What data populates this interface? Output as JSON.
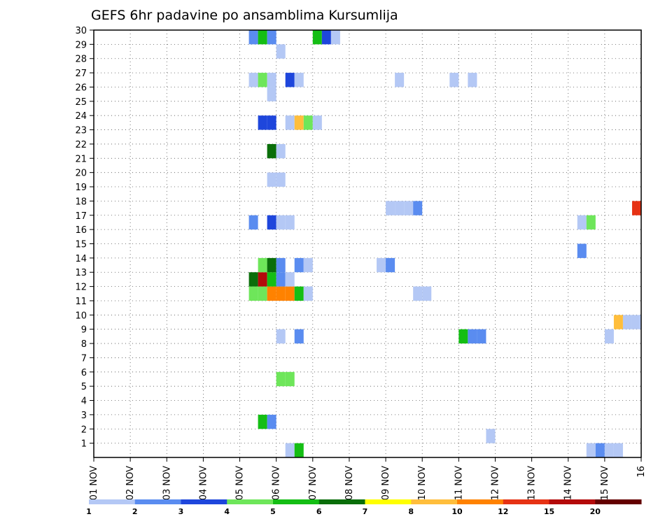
{
  "chart_data": {
    "type": "heatmap",
    "title": "GEFS 6hr padavine po ansamblima Kursumlija",
    "xlabel": "",
    "ylabel": "",
    "x_tick_labels": [
      "01 NOV",
      "02 NOV",
      "03 NOV",
      "04 NOV",
      "05 NOV",
      "06 NOV",
      "07 NOV",
      "08 NOV",
      "09 NOV",
      "10 NOV",
      "11 NOV",
      "12 NOV",
      "13 NOV",
      "14 NOV",
      "15 NOV",
      "16"
    ],
    "y_tick_labels": [
      "1",
      "2",
      "3",
      "4",
      "5",
      "6",
      "7",
      "8",
      "9",
      "10",
      "11",
      "12",
      "13",
      "14",
      "15",
      "16",
      "17",
      "18",
      "19",
      "20",
      "21",
      "22",
      "23",
      "24",
      "25",
      "26",
      "27",
      "28",
      "29",
      "30"
    ],
    "ylim": [
      0,
      30
    ],
    "grid": true,
    "colorbar": {
      "labels": [
        "1",
        "2",
        "3",
        "4",
        "5",
        "6",
        "7",
        "8",
        "10",
        "12",
        "15",
        "20"
      ],
      "colors": [
        "#b4c8f5",
        "#5a8cf0",
        "#1e46dc",
        "#6ee65a",
        "#14be14",
        "#0a6e0a",
        "#ffff00",
        "#ffbe3c",
        "#ff8200",
        "#e63214",
        "#b40a0a",
        "#640000"
      ]
    },
    "cells": [
      {
        "day": 5.25,
        "member": 0,
        "level": 1
      },
      {
        "day": 5.5,
        "member": 0,
        "level": 5
      },
      {
        "day": 13.5,
        "member": 0,
        "level": 1
      },
      {
        "day": 13.75,
        "member": 0,
        "level": 2
      },
      {
        "day": 14.0,
        "member": 0,
        "level": 1
      },
      {
        "day": 14.25,
        "member": 0,
        "level": 1
      },
      {
        "day": 10.75,
        "member": 1,
        "level": 1
      },
      {
        "day": 4.5,
        "member": 2,
        "level": 5
      },
      {
        "day": 4.75,
        "member": 2,
        "level": 2
      },
      {
        "day": 5.0,
        "member": 5,
        "level": 4
      },
      {
        "day": 5.25,
        "member": 5,
        "level": 4
      },
      {
        "day": 5.0,
        "member": 8,
        "level": 1
      },
      {
        "day": 5.5,
        "member": 8,
        "level": 2
      },
      {
        "day": 10.0,
        "member": 8,
        "level": 5
      },
      {
        "day": 10.25,
        "member": 8,
        "level": 2
      },
      {
        "day": 10.5,
        "member": 8,
        "level": 2
      },
      {
        "day": 14.0,
        "member": 8,
        "level": 1
      },
      {
        "day": 14.25,
        "member": 9,
        "level": 8
      },
      {
        "day": 14.5,
        "member": 9,
        "level": 1
      },
      {
        "day": 14.75,
        "member": 9,
        "level": 1
      },
      {
        "day": 4.25,
        "member": 11,
        "level": 4
      },
      {
        "day": 4.5,
        "member": 11,
        "level": 4
      },
      {
        "day": 4.75,
        "member": 11,
        "level": 9
      },
      {
        "day": 5.0,
        "member": 11,
        "level": 9
      },
      {
        "day": 5.25,
        "member": 11,
        "level": 9
      },
      {
        "day": 5.5,
        "member": 11,
        "level": 5
      },
      {
        "day": 5.75,
        "member": 11,
        "level": 1
      },
      {
        "day": 8.75,
        "member": 11,
        "level": 1
      },
      {
        "day": 9.0,
        "member": 11,
        "level": 1
      },
      {
        "day": 4.25,
        "member": 12,
        "level": 6
      },
      {
        "day": 4.5,
        "member": 12,
        "level": 11
      },
      {
        "day": 4.75,
        "member": 12,
        "level": 5
      },
      {
        "day": 5.0,
        "member": 12,
        "level": 2
      },
      {
        "day": 5.25,
        "member": 12,
        "level": 1
      },
      {
        "day": 4.5,
        "member": 13,
        "level": 4
      },
      {
        "day": 4.75,
        "member": 13,
        "level": 6
      },
      {
        "day": 5.0,
        "member": 13,
        "level": 2
      },
      {
        "day": 5.5,
        "member": 13,
        "level": 2
      },
      {
        "day": 5.75,
        "member": 13,
        "level": 1
      },
      {
        "day": 7.75,
        "member": 13,
        "level": 1
      },
      {
        "day": 8.0,
        "member": 13,
        "level": 2
      },
      {
        "day": 13.25,
        "member": 14,
        "level": 2
      },
      {
        "day": 4.25,
        "member": 16,
        "level": 2
      },
      {
        "day": 4.75,
        "member": 16,
        "level": 3
      },
      {
        "day": 5.0,
        "member": 16,
        "level": 1
      },
      {
        "day": 5.25,
        "member": 16,
        "level": 1
      },
      {
        "day": 13.25,
        "member": 16,
        "level": 1
      },
      {
        "day": 13.5,
        "member": 16,
        "level": 4
      },
      {
        "day": 8.0,
        "member": 17,
        "level": 1
      },
      {
        "day": 8.25,
        "member": 17,
        "level": 1
      },
      {
        "day": 8.5,
        "member": 17,
        "level": 1
      },
      {
        "day": 8.75,
        "member": 17,
        "level": 2
      },
      {
        "day": 14.75,
        "member": 17,
        "level": 10
      },
      {
        "day": 4.75,
        "member": 19,
        "level": 1
      },
      {
        "day": 5.0,
        "member": 19,
        "level": 1
      },
      {
        "day": 4.75,
        "member": 21,
        "level": 6
      },
      {
        "day": 5.0,
        "member": 21,
        "level": 1
      },
      {
        "day": 4.5,
        "member": 23,
        "level": 3
      },
      {
        "day": 4.75,
        "member": 23,
        "level": 3
      },
      {
        "day": 5.25,
        "member": 23,
        "level": 1
      },
      {
        "day": 5.5,
        "member": 23,
        "level": 8
      },
      {
        "day": 5.75,
        "member": 23,
        "level": 4
      },
      {
        "day": 6.0,
        "member": 23,
        "level": 1
      },
      {
        "day": 4.75,
        "member": 25,
        "level": 1
      },
      {
        "day": 4.25,
        "member": 26,
        "level": 1
      },
      {
        "day": 4.5,
        "member": 26,
        "level": 4
      },
      {
        "day": 4.75,
        "member": 26,
        "level": 1
      },
      {
        "day": 5.25,
        "member": 26,
        "level": 3
      },
      {
        "day": 5.5,
        "member": 26,
        "level": 1
      },
      {
        "day": 8.25,
        "member": 26,
        "level": 1
      },
      {
        "day": 9.75,
        "member": 26,
        "level": 1
      },
      {
        "day": 10.25,
        "member": 26,
        "level": 1
      },
      {
        "day": 5.0,
        "member": 28,
        "level": 1
      },
      {
        "day": 4.25,
        "member": 29,
        "level": 2
      },
      {
        "day": 4.5,
        "member": 29,
        "level": 5
      },
      {
        "day": 4.75,
        "member": 29,
        "level": 2
      },
      {
        "day": 6.0,
        "member": 29,
        "level": 5
      },
      {
        "day": 6.25,
        "member": 29,
        "level": 3
      },
      {
        "day": 6.5,
        "member": 29,
        "level": 1
      }
    ]
  }
}
